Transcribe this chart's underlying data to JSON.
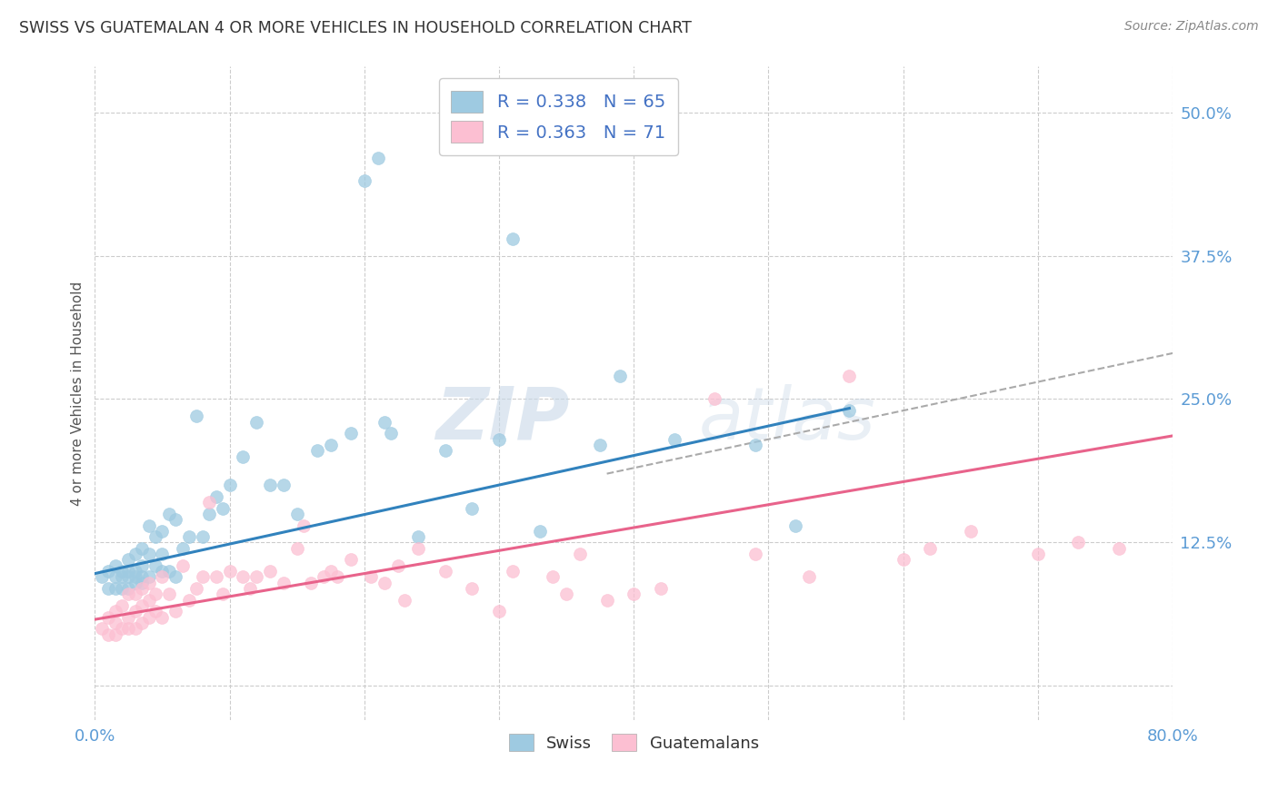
{
  "title": "SWISS VS GUATEMALAN 4 OR MORE VEHICLES IN HOUSEHOLD CORRELATION CHART",
  "source": "Source: ZipAtlas.com",
  "ylabel": "4 or more Vehicles in Household",
  "xlim": [
    0.0,
    0.8
  ],
  "ylim": [
    -0.03,
    0.54
  ],
  "ytick_positions": [
    0.0,
    0.125,
    0.25,
    0.375,
    0.5
  ],
  "yticklabels": [
    "",
    "12.5%",
    "25.0%",
    "37.5%",
    "50.0%"
  ],
  "swiss_color": "#9ecae1",
  "guatemalan_color": "#fcbfd2",
  "swiss_line_color": "#3182bd",
  "guatemalan_line_color": "#e8638b",
  "trend_line_color": "#aaaaaa",
  "swiss_R": 0.338,
  "swiss_N": 65,
  "guatemalan_R": 0.363,
  "guatemalan_N": 71,
  "background_color": "#ffffff",
  "grid_color": "#cccccc",
  "watermark": "ZIPatlas",
  "title_color": "#333333",
  "axis_label_color": "#555555",
  "tick_color": "#5b9bd5",
  "legend_text_color": "#4472c4",
  "swiss_x": [
    0.005,
    0.01,
    0.01,
    0.015,
    0.015,
    0.015,
    0.02,
    0.02,
    0.02,
    0.025,
    0.025,
    0.025,
    0.025,
    0.03,
    0.03,
    0.03,
    0.03,
    0.035,
    0.035,
    0.035,
    0.035,
    0.04,
    0.04,
    0.04,
    0.045,
    0.045,
    0.05,
    0.05,
    0.05,
    0.055,
    0.055,
    0.06,
    0.06,
    0.065,
    0.07,
    0.075,
    0.08,
    0.085,
    0.09,
    0.095,
    0.1,
    0.11,
    0.12,
    0.13,
    0.14,
    0.15,
    0.165,
    0.175,
    0.19,
    0.2,
    0.21,
    0.215,
    0.22,
    0.24,
    0.26,
    0.28,
    0.3,
    0.31,
    0.33,
    0.375,
    0.39,
    0.43,
    0.49,
    0.52,
    0.56
  ],
  "swiss_y": [
    0.095,
    0.085,
    0.1,
    0.085,
    0.095,
    0.105,
    0.085,
    0.095,
    0.1,
    0.085,
    0.095,
    0.1,
    0.11,
    0.09,
    0.095,
    0.1,
    0.115,
    0.09,
    0.095,
    0.105,
    0.12,
    0.095,
    0.115,
    0.14,
    0.105,
    0.13,
    0.1,
    0.115,
    0.135,
    0.1,
    0.15,
    0.095,
    0.145,
    0.12,
    0.13,
    0.235,
    0.13,
    0.15,
    0.165,
    0.155,
    0.175,
    0.2,
    0.23,
    0.175,
    0.175,
    0.15,
    0.205,
    0.21,
    0.22,
    0.44,
    0.46,
    0.23,
    0.22,
    0.13,
    0.205,
    0.155,
    0.215,
    0.39,
    0.135,
    0.21,
    0.27,
    0.215,
    0.21,
    0.14,
    0.24
  ],
  "guatemalan_x": [
    0.005,
    0.01,
    0.01,
    0.015,
    0.015,
    0.015,
    0.02,
    0.02,
    0.025,
    0.025,
    0.025,
    0.03,
    0.03,
    0.03,
    0.035,
    0.035,
    0.035,
    0.04,
    0.04,
    0.04,
    0.045,
    0.045,
    0.05,
    0.05,
    0.055,
    0.06,
    0.065,
    0.07,
    0.075,
    0.08,
    0.085,
    0.09,
    0.095,
    0.1,
    0.11,
    0.115,
    0.12,
    0.13,
    0.14,
    0.15,
    0.155,
    0.16,
    0.17,
    0.175,
    0.18,
    0.19,
    0.205,
    0.215,
    0.225,
    0.23,
    0.24,
    0.26,
    0.28,
    0.3,
    0.31,
    0.34,
    0.35,
    0.36,
    0.38,
    0.4,
    0.42,
    0.46,
    0.49,
    0.53,
    0.56,
    0.6,
    0.62,
    0.65,
    0.7,
    0.73,
    0.76
  ],
  "guatemalan_y": [
    0.05,
    0.045,
    0.06,
    0.045,
    0.055,
    0.065,
    0.05,
    0.07,
    0.05,
    0.06,
    0.08,
    0.05,
    0.065,
    0.08,
    0.055,
    0.07,
    0.085,
    0.06,
    0.075,
    0.09,
    0.065,
    0.08,
    0.06,
    0.095,
    0.08,
    0.065,
    0.105,
    0.075,
    0.085,
    0.095,
    0.16,
    0.095,
    0.08,
    0.1,
    0.095,
    0.085,
    0.095,
    0.1,
    0.09,
    0.12,
    0.14,
    0.09,
    0.095,
    0.1,
    0.095,
    0.11,
    0.095,
    0.09,
    0.105,
    0.075,
    0.12,
    0.1,
    0.085,
    0.065,
    0.1,
    0.095,
    0.08,
    0.115,
    0.075,
    0.08,
    0.085,
    0.25,
    0.115,
    0.095,
    0.27,
    0.11,
    0.12,
    0.135,
    0.115,
    0.125,
    0.12
  ],
  "swiss_line_x": [
    0.0,
    0.56
  ],
  "swiss_line_y": [
    0.098,
    0.242
  ],
  "guatemalan_line_x": [
    0.0,
    0.8
  ],
  "guatemalan_line_y": [
    0.058,
    0.218
  ],
  "dash_line_x": [
    0.38,
    0.8
  ],
  "dash_line_y": [
    0.185,
    0.29
  ]
}
